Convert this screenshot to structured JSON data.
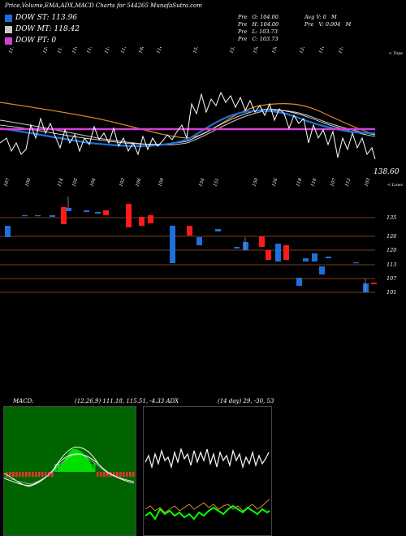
{
  "header": {
    "title": "Price,Volume,EMA,ADX,MACD Charts for 544265 MunafaSutra.com"
  },
  "legend": [
    {
      "label": "DOW ST: 113.96",
      "color": "#1e6fd9"
    },
    {
      "label": "DOW MT: 118.42",
      "color": "#c9c9c9"
    },
    {
      "label": "DOW PT: 0",
      "color": "#d040d0"
    }
  ],
  "ohlc": {
    "open": "Pre   O: 104.00",
    "high": "Pre   H: 104.00",
    "low": "Pre   L: 103.73",
    "close": "Pre   C: 103.73",
    "avg_vol": "Avg V: 0   M",
    "vol": "Pre   V: 0.004   M"
  },
  "price_chart": {
    "top_label": "< Tops",
    "bottom_label": "< Lows",
    "last_price": "138.60",
    "top_ticks": [
      "111",
      "124",
      "117",
      "116",
      "115",
      "114",
      "112",
      "108",
      "118",
      "159",
      "155",
      "150",
      "130",
      "122",
      "118",
      "114"
    ],
    "bottom_ticks": [
      "107",
      "100",
      "114",
      "105",
      "104",
      "102",
      "106",
      "109",
      "154",
      "151",
      "150",
      "126",
      "118",
      "116",
      "107",
      "112",
      "103"
    ],
    "colors": {
      "price": "#ffffff",
      "ema_short": "#1e6fd9",
      "ema_mid": "#cccccc",
      "ema_long": "#e08a2a",
      "dow_pt": "#d040d0"
    }
  },
  "candles": {
    "y_labels": [
      "135",
      "126",
      "120",
      "113",
      "107",
      "101"
    ],
    "colors": {
      "up": "#1e6fd9",
      "down": "#ff1a1a",
      "grid": "#a0522d"
    }
  },
  "macd": {
    "label": "MACD:",
    "values": "(12,26,9) 111.18, 115.51, -4.33 ADX",
    "colors": {
      "fill": "#00c800",
      "neg": "#ff3030",
      "line": "#ffffff"
    }
  },
  "adx": {
    "values": "(14 day) 29, -30, 53",
    "colors": {
      "line1": "#ffffff",
      "line2": "#e08a2a",
      "line3": "#00ff00"
    }
  },
  "chart_data": {
    "type": "line",
    "title": "Price,Volume,EMA,ADX,MACD Charts for 544265 MunafaSutra.com",
    "indicators": {
      "dow_st": 113.96,
      "dow_mt": 118.42,
      "dow_pt": 0,
      "macd": {
        "params": [
          12,
          26,
          9
        ],
        "macd": 111.18,
        "signal": 115.51,
        "histogram": -4.33
      },
      "adx": {
        "period_days": 14,
        "values": [
          29,
          -30,
          53
        ]
      }
    },
    "last_bar": {
      "open": 104.0,
      "high": 104.0,
      "low": 103.73,
      "close": 103.73,
      "avg_volume_m": 0,
      "volume_m": 0.004
    },
    "last_price_label": 138.6,
    "candle_axis_ticks": [
      135,
      126,
      120,
      113,
      107,
      101
    ]
  }
}
